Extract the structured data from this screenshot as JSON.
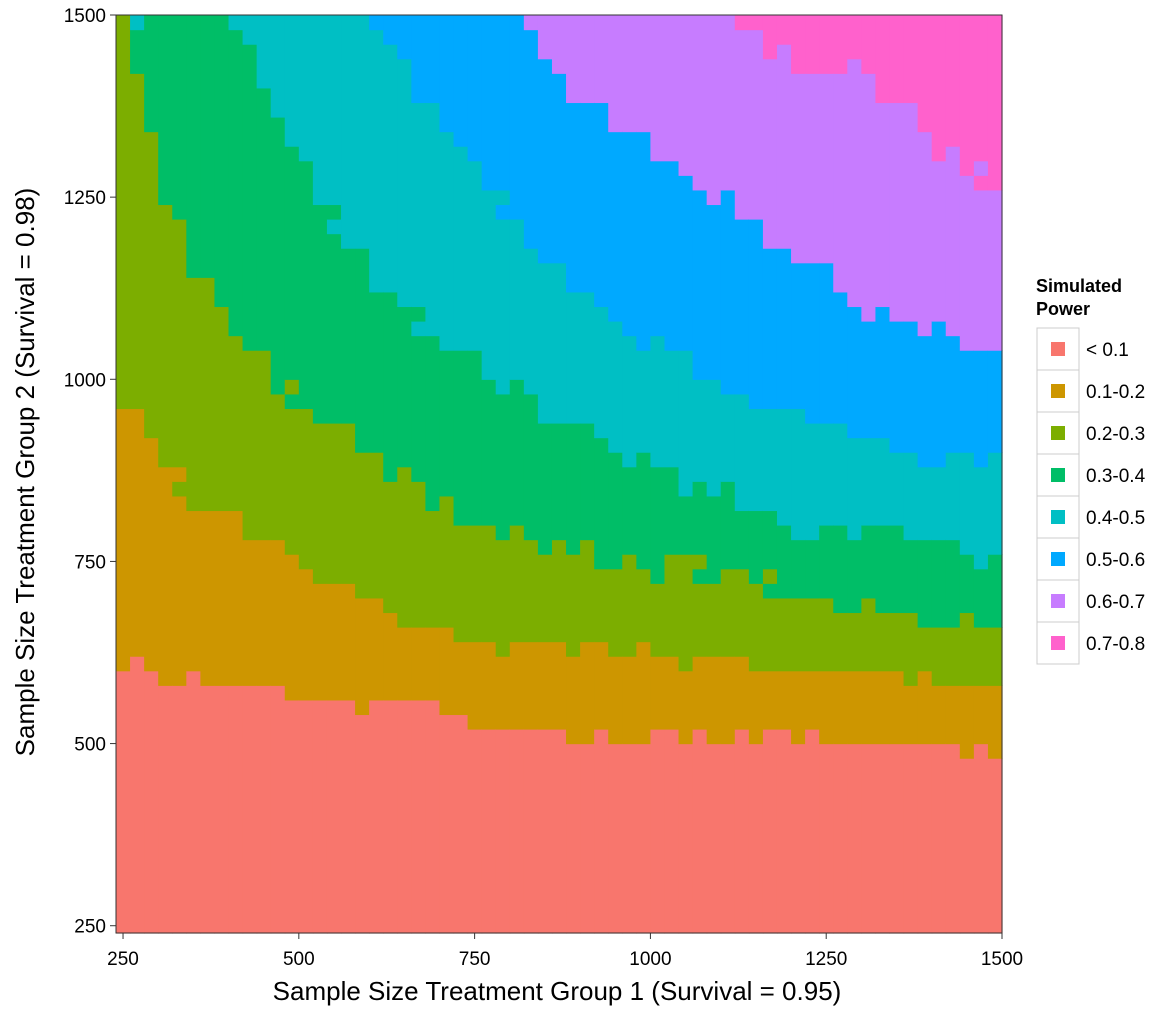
{
  "chart_data": {
    "type": "heatmap",
    "title": "",
    "xlabel": "Sample Size Treatment Group 1 (Survival = 0.95)",
    "ylabel": "Sample Size Treatment Group 2 (Survival = 0.98)",
    "xlim": [
      250,
      1500
    ],
    "ylim": [
      250,
      1500
    ],
    "x_ticks": [
      250,
      500,
      750,
      1000,
      1250,
      1500
    ],
    "y_ticks": [
      250,
      500,
      750,
      1000,
      1250,
      1500
    ],
    "grid": false,
    "legend": {
      "title": "Simulated Power",
      "placement": "right",
      "categories": [
        "< 0.1",
        "0.1-0.2",
        "0.2-0.3",
        "0.3-0.4",
        "0.4-0.5",
        "0.5-0.6",
        "0.6-0.7",
        "0.7-0.8"
      ],
      "colors": [
        "#F8766D",
        "#CD9600",
        "#7CAE00",
        "#00BE67",
        "#00BFC4",
        "#00A9FF",
        "#C77CFF",
        "#FF61CC"
      ]
    },
    "band_upper_boundaries": [
      {
        "upper_bound_of": "< 0.1",
        "points": [
          [
            250,
            610
          ],
          [
            300,
            590
          ],
          [
            420,
            580
          ],
          [
            500,
            560
          ],
          [
            600,
            560
          ],
          [
            700,
            540
          ],
          [
            800,
            510
          ],
          [
            1000,
            510
          ],
          [
            1250,
            505
          ],
          [
            1300,
            500
          ],
          [
            1500,
            490
          ]
        ]
      },
      {
        "upper_bound_of": "0.1-0.2",
        "points": [
          [
            250,
            970
          ],
          [
            300,
            900
          ],
          [
            350,
            830
          ],
          [
            420,
            800
          ],
          [
            500,
            740
          ],
          [
            600,
            690
          ],
          [
            700,
            650
          ],
          [
            800,
            640
          ],
          [
            900,
            630
          ],
          [
            1000,
            630
          ],
          [
            1100,
            610
          ],
          [
            1200,
            600
          ],
          [
            1300,
            590
          ],
          [
            1500,
            590
          ]
        ]
      },
      {
        "upper_bound_of": "0.2-0.3",
        "points": [
          [
            250,
            1490
          ],
          [
            270,
            1400
          ],
          [
            310,
            1250
          ],
          [
            350,
            1150
          ],
          [
            420,
            1050
          ],
          [
            500,
            970
          ],
          [
            580,
            920
          ],
          [
            650,
            870
          ],
          [
            750,
            810
          ],
          [
            850,
            770
          ],
          [
            950,
            750
          ],
          [
            1050,
            740
          ],
          [
            1150,
            720
          ],
          [
            1250,
            700
          ],
          [
            1350,
            680
          ],
          [
            1500,
            670
          ]
        ]
      },
      {
        "upper_bound_of": "0.3-0.4",
        "points": [
          [
            250,
            1500
          ],
          [
            420,
            1500
          ],
          [
            450,
            1400
          ],
          [
            500,
            1300
          ],
          [
            560,
            1200
          ],
          [
            620,
            1120
          ],
          [
            700,
            1050
          ],
          [
            780,
            990
          ],
          [
            900,
            930
          ],
          [
            1000,
            890
          ],
          [
            1100,
            840
          ],
          [
            1200,
            800
          ],
          [
            1300,
            790
          ],
          [
            1400,
            780
          ],
          [
            1500,
            750
          ]
        ]
      },
      {
        "upper_bound_of": "0.4-0.5",
        "points": [
          [
            610,
            1500
          ],
          [
            650,
            1420
          ],
          [
            720,
            1330
          ],
          [
            780,
            1250
          ],
          [
            850,
            1160
          ],
          [
            950,
            1080
          ],
          [
            1050,
            1020
          ],
          [
            1150,
            970
          ],
          [
            1250,
            930
          ],
          [
            1350,
            910
          ],
          [
            1400,
            880
          ],
          [
            1500,
            890
          ]
        ]
      },
      {
        "upper_bound_of": "0.5-0.6",
        "points": [
          [
            820,
            1500
          ],
          [
            860,
            1420
          ],
          [
            920,
            1370
          ],
          [
            980,
            1330
          ],
          [
            1050,
            1280
          ],
          [
            1100,
            1250
          ],
          [
            1150,
            1200
          ],
          [
            1200,
            1170
          ],
          [
            1250,
            1140
          ],
          [
            1300,
            1100
          ],
          [
            1350,
            1080
          ],
          [
            1450,
            1060
          ],
          [
            1500,
            1030
          ]
        ]
      },
      {
        "upper_bound_of": "0.6-0.7",
        "points": [
          [
            1120,
            1500
          ],
          [
            1160,
            1460
          ],
          [
            1220,
            1440
          ],
          [
            1270,
            1430
          ],
          [
            1320,
            1410
          ],
          [
            1350,
            1390
          ],
          [
            1400,
            1330
          ],
          [
            1450,
            1290
          ],
          [
            1500,
            1250
          ]
        ]
      }
    ]
  }
}
